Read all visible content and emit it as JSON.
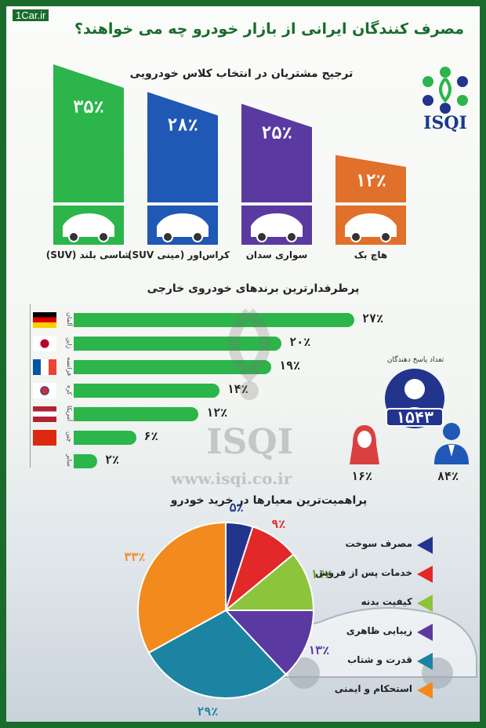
{
  "site": "1Car.ir",
  "title": "مصرف کنندگان ایرانی از بازار خودرو چه می خواهند؟",
  "logo_text": "ISQI",
  "watermark": {
    "brand": "ISQI",
    "url": "www.isqi.co.ir"
  },
  "colors": {
    "green": "#2cb54a",
    "dark_green": "#1b6b2d",
    "blue": "#1f58b5",
    "purple": "#5a3aa0",
    "orange": "#e0702a",
    "red": "#e22828",
    "light_green": "#8cc43c",
    "teal": "#1c84a2",
    "navy": "#22348c",
    "amber": "#f38a1e"
  },
  "respondents": {
    "label": "تعداد پاسخ دهندگان",
    "count": "۱۵۴۳",
    "female_pct": "۱۶٪",
    "male_pct": "۸۴٪"
  },
  "chart_data": [
    {
      "type": "bar",
      "title": "ترجیح مشتریان در انتخاب کلاس خودرویی",
      "categories": [
        "شاسی بلند (SUV)",
        "کراس‌اور (مینی SUV)",
        "سواری سدان",
        "هاچ بک"
      ],
      "values": [
        35,
        28,
        25,
        12
      ],
      "value_labels": [
        "۳۵٪",
        "۲۸٪",
        "۲۵٪",
        "۱۲٪"
      ],
      "colors": [
        "#2cb54a",
        "#1f58b5",
        "#5a3aa0",
        "#e0702a"
      ]
    },
    {
      "type": "bar",
      "orientation": "horizontal",
      "title": "پرطرفدارترین برندهای خودروی خارجی",
      "categories": [
        "آلمان",
        "ژاپن",
        "فرانسه",
        "کره",
        "آمریکا",
        "چین",
        "سایر"
      ],
      "values": [
        27,
        20,
        19,
        14,
        12,
        6,
        2
      ],
      "value_labels": [
        "۲۷٪",
        "۲۰٪",
        "۱۹٪",
        "۱۴٪",
        "۱۲٪",
        "۶٪",
        "۲٪"
      ],
      "color": "#2cb54a"
    },
    {
      "type": "pie",
      "title": "پراهمیت‌ترین معیارها در خرید خودرو",
      "categories": [
        "مصرف سوخت",
        "خدمات پس از فروش",
        "کیفیت بدنه",
        "زیبایی ظاهری",
        "قدرت و شتاب",
        "استحکام و ایمنی"
      ],
      "values": [
        5,
        9,
        11,
        13,
        29,
        33
      ],
      "value_labels": [
        "۵٪",
        "۹٪",
        "۱۱٪",
        "۱۳٪",
        "۲۹٪",
        "۳۳٪"
      ],
      "colors": [
        "#22348c",
        "#e22828",
        "#8cc43c",
        "#5a3aa0",
        "#1c84a2",
        "#f38a1e"
      ]
    }
  ]
}
